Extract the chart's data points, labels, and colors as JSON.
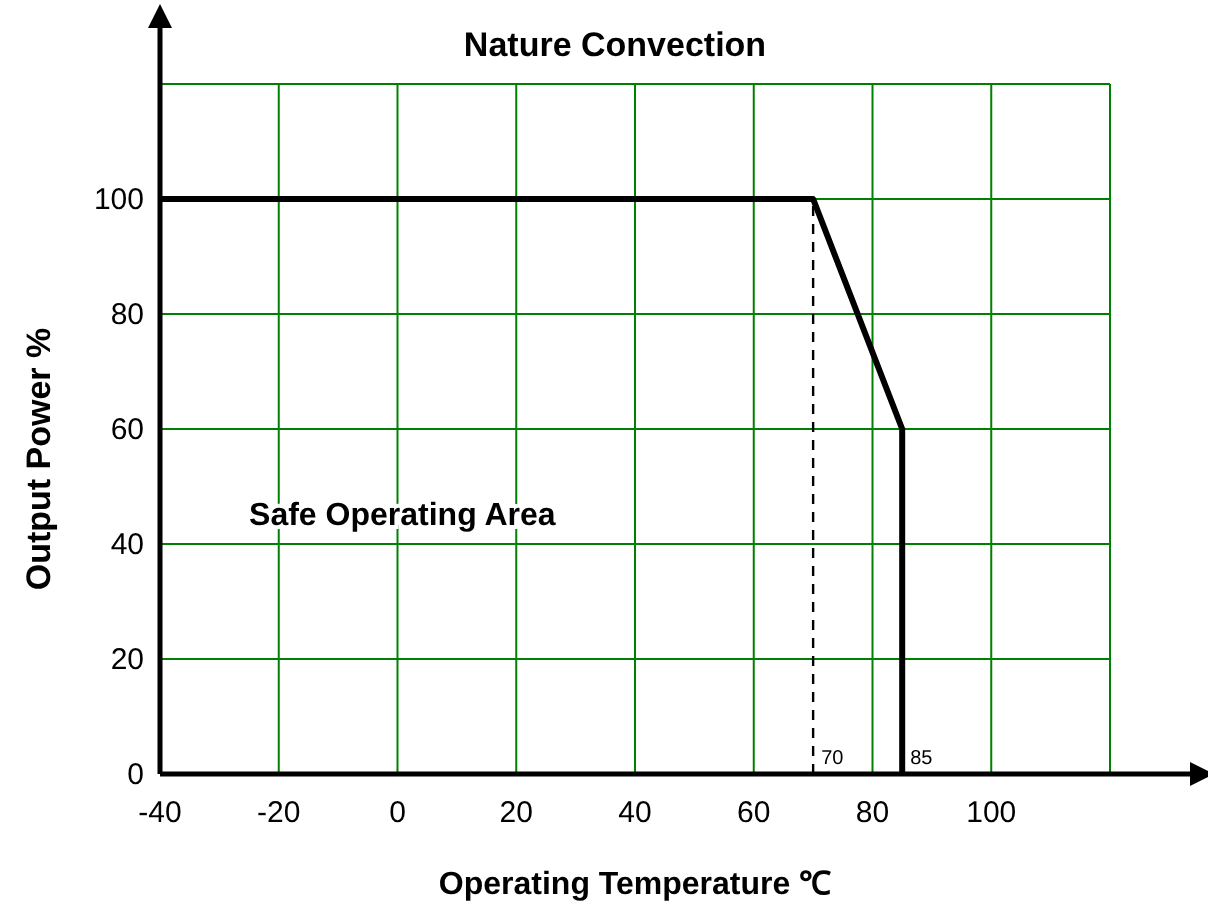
{
  "chart_data": {
    "type": "line",
    "title": "Nature Convection",
    "xlabel": "Operating Temperature ℃",
    "ylabel": "Output Power %",
    "xlim": [
      -40,
      120
    ],
    "ylim": [
      0,
      120
    ],
    "xticks": [
      -40,
      -20,
      0,
      20,
      40,
      60,
      80,
      100,
      {
        "value": 120,
        "label": null
      }
    ],
    "yticks": [
      0,
      20,
      40,
      60,
      80,
      100,
      {
        "value": 120,
        "label": null
      }
    ],
    "grid": true,
    "series": [
      {
        "color": "#000000",
        "x": [
          -40,
          70,
          85,
          85
        ],
        "values": [
          100,
          100,
          60,
          0
        ],
        "line_style": "solid"
      },
      {
        "color": "#000000",
        "x": [
          70,
          70
        ],
        "values": [
          0,
          100
        ],
        "line_style": "dashed"
      }
    ],
    "annotations": [
      "Safe Operating Area",
      {
        "text": "70",
        "x": 70,
        "y": 0
      },
      {
        "text": "85",
        "x": 85,
        "y": 0
      }
    ]
  }
}
